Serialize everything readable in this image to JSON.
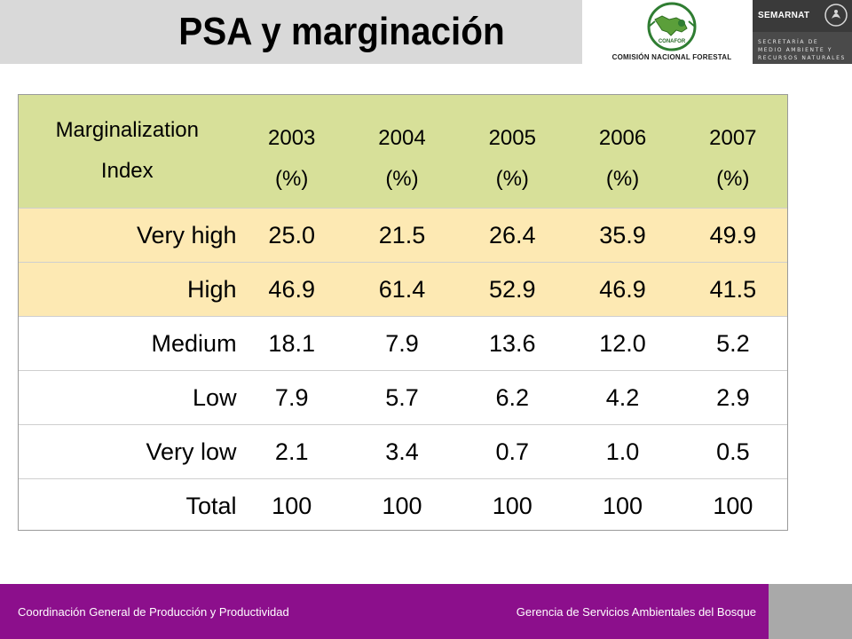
{
  "header": {
    "title": "PSA y marginación",
    "conafor_label": "CONAFOR",
    "conafor_caption": "COMISIÓN NACIONAL FORESTAL",
    "semarnat_name": "SEMARNAT",
    "semarnat_lines": [
      "SECRETARÍA DE",
      "MEDIO AMBIENTE Y",
      "RECURSOS NATURALES"
    ]
  },
  "table": {
    "header_label_line1": "Marginalization",
    "header_label_line2": "Index",
    "years": [
      "2003",
      "2004",
      "2005",
      "2006",
      "2007"
    ],
    "unit": "(%)",
    "rows": [
      {
        "label": "Very high",
        "values": [
          "25.0",
          "21.5",
          "26.4",
          "35.9",
          "49.9"
        ]
      },
      {
        "label": "High",
        "values": [
          "46.9",
          "61.4",
          "52.9",
          "46.9",
          "41.5"
        ]
      },
      {
        "label": "Medium",
        "values": [
          "18.1",
          "7.9",
          "13.6",
          "12.0",
          "5.2"
        ]
      },
      {
        "label": "Low",
        "values": [
          "7.9",
          "5.7",
          "6.2",
          "4.2",
          "2.9"
        ]
      },
      {
        "label": "Very low",
        "values": [
          "2.1",
          "3.4",
          "0.7",
          "1.0",
          "0.5"
        ]
      },
      {
        "label": "Total",
        "values": [
          "100",
          "100",
          "100",
          "100",
          "100"
        ]
      }
    ]
  },
  "footer": {
    "left": "Coordinación General de Producción y Productividad",
    "right": "Gerencia de Servicios Ambientales del Bosque"
  },
  "colors": {
    "header_bg": "#d7e099",
    "highlight_bg": "#fde9b3",
    "footer_bg": "#8c0f8c",
    "title_band": "#d9d9d9"
  }
}
